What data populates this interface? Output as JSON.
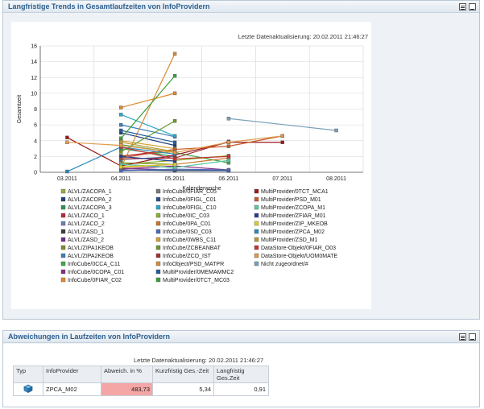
{
  "panel1": {
    "title": "Langfristige Trends in Gesamtlaufzeiten von InfoProvidern",
    "updated": "Letzte Datenaktualisierung: 20.02.2011 21:46:27"
  },
  "panel2": {
    "title": "Abweichungen in Laufzeiten von InfoProvidern",
    "updated": "Letzte Datenaktualisierung: 20.02.2011 21:46:27",
    "columns": [
      "Typ",
      "InfoProvider",
      "Abweich. in %",
      "Kurzfristig Ges.-Zeit",
      "Langfristig Ges.Zeit"
    ],
    "rows": [
      {
        "type_icon": "cube-icon",
        "provider": "ZPCA_M02",
        "deviation": "483,73",
        "short": "5,34",
        "long": "0,91"
      }
    ]
  },
  "chart_data": {
    "type": "line",
    "ylabel": "Gesamtzeit",
    "xlabel": "Kalenderwoche",
    "categories": [
      "03.2011",
      "04.2011",
      "05.2011",
      "06.2011",
      "07.2011",
      "08.2011"
    ],
    "ylim": [
      0,
      16
    ],
    "yticks": [
      "0",
      "2",
      "4",
      "6",
      "8",
      "10",
      "12",
      "14",
      "16"
    ],
    "legend_placement": "bottom",
    "series": [
      {
        "name": "ALVL/ZACOPA_1",
        "color": "#9aa83a",
        "values": [
          null,
          2.1,
          2.6,
          null,
          null,
          null
        ]
      },
      {
        "name": "ALVL/ZACOPA_2",
        "color": "#1f3f7a",
        "values": [
          null,
          5.0,
          3.4,
          null,
          null,
          null
        ]
      },
      {
        "name": "ALVL/ZACOPA_3",
        "color": "#2f8f5a",
        "values": [
          null,
          3.0,
          2.0,
          null,
          null,
          null
        ]
      },
      {
        "name": "ALVL/ZACO_1",
        "color": "#b8263a",
        "values": [
          null,
          2.0,
          2.9,
          null,
          null,
          null
        ]
      },
      {
        "name": "ALVL/ZACO_2",
        "color": "#6b7fb0",
        "values": [
          null,
          1.6,
          2.0,
          null,
          null,
          null
        ]
      },
      {
        "name": "ALVL/ZASD_1",
        "color": "#3a3a3a",
        "values": [
          null,
          1.0,
          0.6,
          null,
          null,
          null
        ]
      },
      {
        "name": "ALVL/ZASD_2",
        "color": "#6d2d8a",
        "values": [
          null,
          0.5,
          0.3,
          null,
          null,
          null
        ]
      },
      {
        "name": "ALVL/ZIPA1KEOB",
        "color": "#7f8a2a",
        "values": [
          null,
          1.2,
          1.0,
          null,
          null,
          null
        ]
      },
      {
        "name": "ALVL/ZIPA2KEOB",
        "color": "#3b7fb8",
        "values": [
          null,
          6.0,
          4.5,
          null,
          null,
          null
        ]
      },
      {
        "name": "InfoCube/0CCA_C11",
        "color": "#41a84b",
        "values": [
          null,
          3.5,
          2.5,
          1.2,
          null,
          null
        ]
      },
      {
        "name": "InfoCube/0COPA_C01",
        "color": "#8a2a7d",
        "values": [
          null,
          0.4,
          0.8,
          0.3,
          null,
          null
        ]
      },
      {
        "name": "InfoCube/0FIAR_C02",
        "color": "#e08a2a",
        "values": [
          null,
          8.2,
          10.0,
          null,
          null,
          null
        ]
      },
      {
        "name": "InfoCube/0FIAR_C05",
        "color": "#7a7a7a",
        "values": [
          null,
          0.2,
          0.3,
          0.2,
          null,
          null
        ]
      },
      {
        "name": "InfoCube/0FIGL_C01",
        "color": "#2a4d8a",
        "values": [
          null,
          0.3,
          0.2,
          0.2,
          null,
          null
        ]
      },
      {
        "name": "InfoCube/0FIGL_C10",
        "color": "#2aa8c8",
        "values": [
          null,
          7.3,
          4.6,
          null,
          null,
          null
        ]
      },
      {
        "name": "InfoCube/0IC_C03",
        "color": "#8ab02a",
        "values": [
          null,
          1.0,
          1.5,
          2.1,
          null,
          null
        ]
      },
      {
        "name": "InfoCube/0PA_C01",
        "color": "#c8782a",
        "values": [
          null,
          0.6,
          1.0,
          1.8,
          null,
          null
        ]
      },
      {
        "name": "InfoCube/0SD_C03",
        "color": "#4a6ab8",
        "values": [
          null,
          0.2,
          0.4,
          0.3,
          null,
          null
        ]
      },
      {
        "name": "InfoCube/0WBS_C11",
        "color": "#d4a030",
        "values": [
          null,
          4.0,
          3.0,
          null,
          null,
          null
        ]
      },
      {
        "name": "InfoCube/ZCBEANBAT",
        "color": "#6a9a2a",
        "values": [
          null,
          2.6,
          6.5,
          null,
          null,
          null
        ]
      },
      {
        "name": "InfoCube/ZCO_IST",
        "color": "#a03030",
        "values": [
          null,
          1.7,
          1.8,
          3.9,
          null,
          null
        ]
      },
      {
        "name": "InfoObject/PSD_MATPR",
        "color": "#d88a3a",
        "values": [
          null,
          0.6,
          15.0,
          null,
          null,
          null
        ]
      },
      {
        "name": "MultiProvider/0MEMAMMC2",
        "color": "#1f5f9a",
        "values": [
          null,
          5.3,
          3.8,
          null,
          null,
          null
        ]
      },
      {
        "name": "MultiProvider/0TCT_MC03",
        "color": "#3aa03a",
        "values": [
          null,
          4.3,
          12.2,
          null,
          null,
          null
        ]
      },
      {
        "name": "MultiProvider/0TCT_MCA1",
        "color": "#9a1a1a",
        "values": [
          4.4,
          0.8,
          2.2,
          3.8,
          3.8,
          null
        ]
      },
      {
        "name": "MultiProvider/PSD_M01",
        "color": "#c85a2a",
        "values": [
          null,
          1.8,
          2.9,
          3.3,
          4.6,
          null
        ]
      },
      {
        "name": "MultiProvider/ZCOPA_M1",
        "color": "#5ac8a0",
        "values": [
          null,
          1.0,
          0.6,
          1.5,
          null,
          null
        ]
      },
      {
        "name": "MultiProvider/ZFIAR_M01",
        "color": "#2a3a8a",
        "values": [
          null,
          2.0,
          1.4,
          null,
          null,
          null
        ]
      },
      {
        "name": "MultiProvider/ZIP_MKEOB",
        "color": "#d8d030",
        "values": [
          null,
          0.7,
          1.0,
          null,
          null,
          null
        ]
      },
      {
        "name": "MultiProvider/ZPCA_M02",
        "color": "#2a8ab8",
        "values": [
          0.1,
          3.2,
          2.3,
          null,
          null,
          null
        ]
      },
      {
        "name": "MultiProvider/ZSD_M1",
        "color": "#b89a30",
        "values": [
          null,
          3.8,
          2.6,
          null,
          null,
          null
        ]
      },
      {
        "name": "DataStore-Objekt/0FIAR_O03",
        "color": "#c83030",
        "values": [
          null,
          3.2,
          1.7,
          2.0,
          null,
          null
        ]
      },
      {
        "name": "DataStore-Objekt/UOM0MATE",
        "color": "#e09a4a",
        "values": [
          3.8,
          3.4,
          2.5,
          3.8,
          4.6,
          null
        ]
      },
      {
        "name": "Nicht zugeordnet/#",
        "color": "#7aa0b8",
        "values": [
          null,
          null,
          null,
          6.8,
          null,
          5.3
        ]
      }
    ],
    "legend": [
      [
        "ALVL/ZACOPA_1",
        "InfoCube/0FIAR_C05",
        "MultiProvider/0TCT_MCA1"
      ],
      [
        "ALVL/ZACOPA_2",
        "InfoCube/0FIGL_C01",
        "MultiProvider/PSD_M01"
      ],
      [
        "ALVL/ZACOPA_3",
        "InfoCube/0FIGL_C10",
        "MultiProvider/ZCOPA_M1"
      ],
      [
        "ALVL/ZACO_1",
        "InfoCube/0IC_C03",
        "MultiProvider/ZFIAR_M01"
      ],
      [
        "ALVL/ZACO_2",
        "InfoCube/0PA_C01",
        "MultiProvider/ZIP_MKEOB"
      ],
      [
        "ALVL/ZASD_1",
        "InfoCube/0SD_C03",
        "MultiProvider/ZPCA_M02"
      ],
      [
        "ALVL/ZASD_2",
        "InfoCube/0WBS_C11",
        "MultiProvider/ZSD_M1"
      ],
      [
        "ALVL/ZIPA1KEOB",
        "InfoCube/ZCBEANBAT",
        "DataStore-Objekt/0FIAR_O03"
      ],
      [
        "ALVL/ZIPA2KEOB",
        "InfoCube/ZCO_IST",
        "DataStore-Objekt/UOM0MATE"
      ],
      [
        "InfoCube/0CCA_C11",
        "InfoObject/PSD_MATPR",
        "Nicht zugeordnet/#"
      ],
      [
        "InfoCube/0COPA_C01",
        "MultiProvider/0MEMAMMC2",
        ""
      ],
      [
        "InfoCube/0FIAR_C02",
        "MultiProvider/0TCT_MC03",
        ""
      ]
    ]
  }
}
